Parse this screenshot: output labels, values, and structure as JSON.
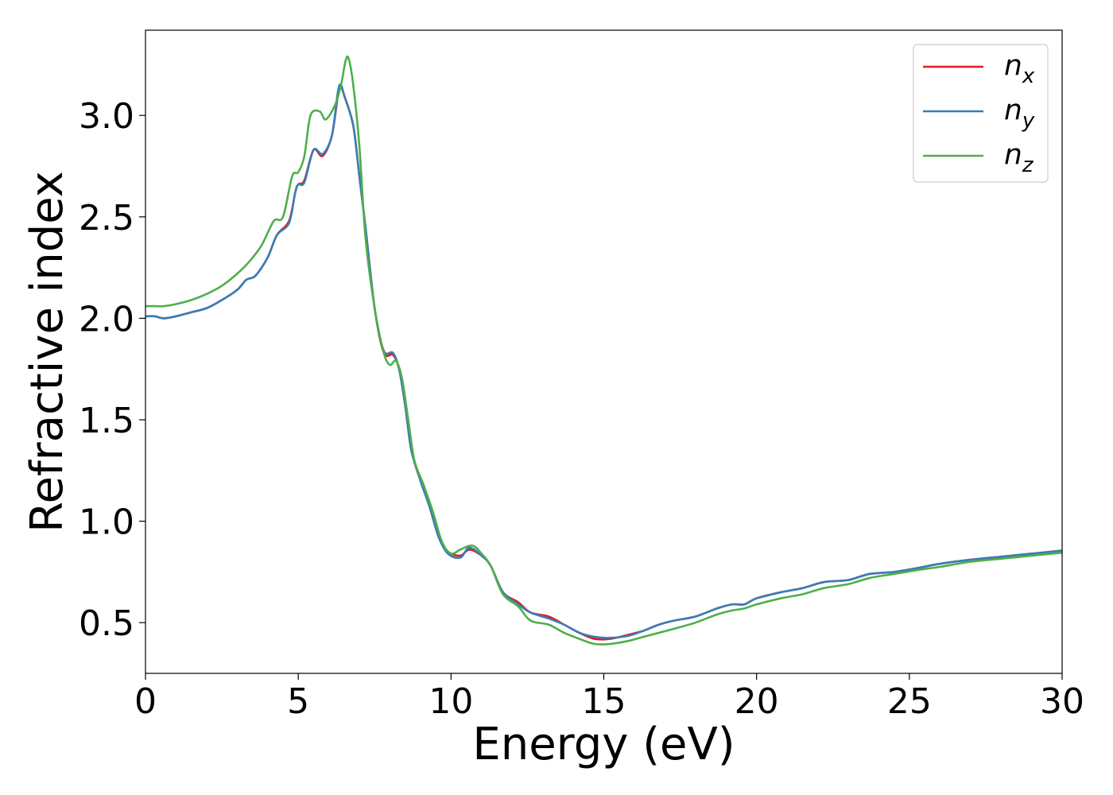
{
  "chart_data": {
    "type": "line",
    "xlabel": "Energy (eV)",
    "ylabel": "Refractive index",
    "xlim": [
      0,
      30
    ],
    "ylim": [
      0.25,
      3.42
    ],
    "xticks": [
      0,
      5,
      10,
      15,
      20,
      25,
      30
    ],
    "xtick_labels": [
      "0",
      "5",
      "10",
      "15",
      "20",
      "25",
      "30"
    ],
    "yticks": [
      0.5,
      1.0,
      1.5,
      2.0,
      2.5,
      3.0
    ],
    "ytick_labels": [
      "0.5",
      "1.0",
      "1.5",
      "2.0",
      "2.5",
      "3.0"
    ],
    "grid": false,
    "legend": {
      "position": "top-right"
    },
    "series": [
      {
        "name": "n_x",
        "name_base": "n",
        "name_sub": "x",
        "color": "#e41a1c",
        "points": [
          [
            0,
            2.01
          ],
          [
            0.3,
            2.01
          ],
          [
            0.6,
            2.0
          ],
          [
            1,
            2.01
          ],
          [
            1.5,
            2.03
          ],
          [
            2,
            2.05
          ],
          [
            2.5,
            2.09
          ],
          [
            3,
            2.14
          ],
          [
            3.3,
            2.19
          ],
          [
            3.6,
            2.21
          ],
          [
            4,
            2.3
          ],
          [
            4.3,
            2.41
          ],
          [
            4.7,
            2.48
          ],
          [
            4.9,
            2.62
          ],
          [
            5.0,
            2.66
          ],
          [
            5.2,
            2.68
          ],
          [
            5.5,
            2.83
          ],
          [
            5.8,
            2.8
          ],
          [
            6.1,
            2.9
          ],
          [
            6.3,
            3.1
          ],
          [
            6.4,
            3.14
          ],
          [
            6.5,
            3.1
          ],
          [
            6.8,
            2.95
          ],
          [
            7.0,
            2.7
          ],
          [
            7.2,
            2.45
          ],
          [
            7.5,
            2.05
          ],
          [
            7.8,
            1.83
          ],
          [
            8.1,
            1.82
          ],
          [
            8.3,
            1.75
          ],
          [
            8.5,
            1.57
          ],
          [
            8.7,
            1.35
          ],
          [
            9,
            1.2
          ],
          [
            9.3,
            1.07
          ],
          [
            9.6,
            0.92
          ],
          [
            9.9,
            0.85
          ],
          [
            10.3,
            0.83
          ],
          [
            10.6,
            0.86
          ],
          [
            11,
            0.83
          ],
          [
            11.3,
            0.78
          ],
          [
            11.7,
            0.65
          ],
          [
            12.2,
            0.6
          ],
          [
            12.6,
            0.55
          ],
          [
            13.2,
            0.53
          ],
          [
            13.7,
            0.49
          ],
          [
            14.2,
            0.45
          ],
          [
            14.7,
            0.42
          ],
          [
            15.2,
            0.42
          ],
          [
            15.8,
            0.44
          ],
          [
            16.3,
            0.46
          ],
          [
            16.8,
            0.49
          ],
          [
            17.3,
            0.51
          ],
          [
            18,
            0.53
          ],
          [
            18.7,
            0.57
          ],
          [
            19.2,
            0.59
          ],
          [
            19.6,
            0.59
          ],
          [
            20,
            0.62
          ],
          [
            20.8,
            0.65
          ],
          [
            21.5,
            0.67
          ],
          [
            22.2,
            0.7
          ],
          [
            23,
            0.71
          ],
          [
            23.7,
            0.74
          ],
          [
            24.5,
            0.75
          ],
          [
            25.3,
            0.77
          ],
          [
            26,
            0.79
          ],
          [
            27,
            0.81
          ],
          [
            28,
            0.825
          ],
          [
            29,
            0.84
          ],
          [
            30,
            0.855
          ]
        ]
      },
      {
        "name": "n_y",
        "name_base": "n",
        "name_sub": "y",
        "color": "#377eb8",
        "points": [
          [
            0,
            2.01
          ],
          [
            0.3,
            2.01
          ],
          [
            0.6,
            2.0
          ],
          [
            1,
            2.01
          ],
          [
            1.5,
            2.03
          ],
          [
            2,
            2.05
          ],
          [
            2.5,
            2.09
          ],
          [
            3,
            2.14
          ],
          [
            3.3,
            2.19
          ],
          [
            3.6,
            2.21
          ],
          [
            4,
            2.3
          ],
          [
            4.3,
            2.41
          ],
          [
            4.7,
            2.47
          ],
          [
            4.9,
            2.62
          ],
          [
            5.0,
            2.66
          ],
          [
            5.2,
            2.67
          ],
          [
            5.5,
            2.83
          ],
          [
            5.8,
            2.81
          ],
          [
            6.1,
            2.9
          ],
          [
            6.3,
            3.12
          ],
          [
            6.4,
            3.15
          ],
          [
            6.5,
            3.1
          ],
          [
            6.8,
            2.95
          ],
          [
            7.0,
            2.7
          ],
          [
            7.2,
            2.45
          ],
          [
            7.5,
            2.05
          ],
          [
            7.8,
            1.84
          ],
          [
            8.1,
            1.83
          ],
          [
            8.3,
            1.75
          ],
          [
            8.5,
            1.57
          ],
          [
            8.7,
            1.35
          ],
          [
            9,
            1.2
          ],
          [
            9.3,
            1.07
          ],
          [
            9.6,
            0.92
          ],
          [
            9.9,
            0.84
          ],
          [
            10.3,
            0.82
          ],
          [
            10.6,
            0.87
          ],
          [
            11,
            0.83
          ],
          [
            11.3,
            0.78
          ],
          [
            11.7,
            0.65
          ],
          [
            12.2,
            0.59
          ],
          [
            12.6,
            0.55
          ],
          [
            13.2,
            0.52
          ],
          [
            13.7,
            0.49
          ],
          [
            14.2,
            0.45
          ],
          [
            14.7,
            0.43
          ],
          [
            15.2,
            0.425
          ],
          [
            15.8,
            0.435
          ],
          [
            16.3,
            0.46
          ],
          [
            16.8,
            0.49
          ],
          [
            17.3,
            0.51
          ],
          [
            18,
            0.53
          ],
          [
            18.7,
            0.57
          ],
          [
            19.2,
            0.59
          ],
          [
            19.6,
            0.59
          ],
          [
            20,
            0.62
          ],
          [
            20.8,
            0.65
          ],
          [
            21.5,
            0.67
          ],
          [
            22.2,
            0.7
          ],
          [
            23,
            0.71
          ],
          [
            23.7,
            0.74
          ],
          [
            24.5,
            0.75
          ],
          [
            25.3,
            0.77
          ],
          [
            26,
            0.79
          ],
          [
            27,
            0.81
          ],
          [
            28,
            0.825
          ],
          [
            29,
            0.84
          ],
          [
            30,
            0.855
          ]
        ]
      },
      {
        "name": "n_z",
        "name_base": "n",
        "name_sub": "z",
        "color": "#4daf4a",
        "points": [
          [
            0,
            2.06
          ],
          [
            0.3,
            2.06
          ],
          [
            0.6,
            2.06
          ],
          [
            1,
            2.07
          ],
          [
            1.5,
            2.09
          ],
          [
            2,
            2.12
          ],
          [
            2.5,
            2.16
          ],
          [
            3,
            2.22
          ],
          [
            3.4,
            2.28
          ],
          [
            3.8,
            2.36
          ],
          [
            4.2,
            2.48
          ],
          [
            4.5,
            2.5
          ],
          [
            4.8,
            2.7
          ],
          [
            5.0,
            2.72
          ],
          [
            5.2,
            2.8
          ],
          [
            5.4,
            3.0
          ],
          [
            5.7,
            3.02
          ],
          [
            5.9,
            2.98
          ],
          [
            6.2,
            3.05
          ],
          [
            6.4,
            3.15
          ],
          [
            6.55,
            3.27
          ],
          [
            6.65,
            3.28
          ],
          [
            6.8,
            3.15
          ],
          [
            7.0,
            2.85
          ],
          [
            7.2,
            2.4
          ],
          [
            7.5,
            2.05
          ],
          [
            7.8,
            1.83
          ],
          [
            8.0,
            1.77
          ],
          [
            8.2,
            1.79
          ],
          [
            8.4,
            1.7
          ],
          [
            8.6,
            1.5
          ],
          [
            8.8,
            1.3
          ],
          [
            9.1,
            1.18
          ],
          [
            9.4,
            1.05
          ],
          [
            9.7,
            0.9
          ],
          [
            10.0,
            0.84
          ],
          [
            10.3,
            0.86
          ],
          [
            10.7,
            0.88
          ],
          [
            11,
            0.84
          ],
          [
            11.3,
            0.78
          ],
          [
            11.7,
            0.64
          ],
          [
            12.2,
            0.58
          ],
          [
            12.6,
            0.51
          ],
          [
            13.2,
            0.49
          ],
          [
            13.7,
            0.45
          ],
          [
            14.2,
            0.42
          ],
          [
            14.7,
            0.395
          ],
          [
            15.2,
            0.395
          ],
          [
            15.8,
            0.41
          ],
          [
            16.3,
            0.43
          ],
          [
            16.8,
            0.45
          ],
          [
            17.3,
            0.47
          ],
          [
            18,
            0.5
          ],
          [
            18.7,
            0.54
          ],
          [
            19.2,
            0.56
          ],
          [
            19.6,
            0.57
          ],
          [
            20,
            0.59
          ],
          [
            20.8,
            0.62
          ],
          [
            21.5,
            0.64
          ],
          [
            22.2,
            0.67
          ],
          [
            23,
            0.69
          ],
          [
            23.7,
            0.72
          ],
          [
            24.5,
            0.74
          ],
          [
            25.3,
            0.76
          ],
          [
            26,
            0.775
          ],
          [
            27,
            0.8
          ],
          [
            28,
            0.815
          ],
          [
            29,
            0.83
          ],
          [
            30,
            0.845
          ]
        ]
      }
    ]
  }
}
